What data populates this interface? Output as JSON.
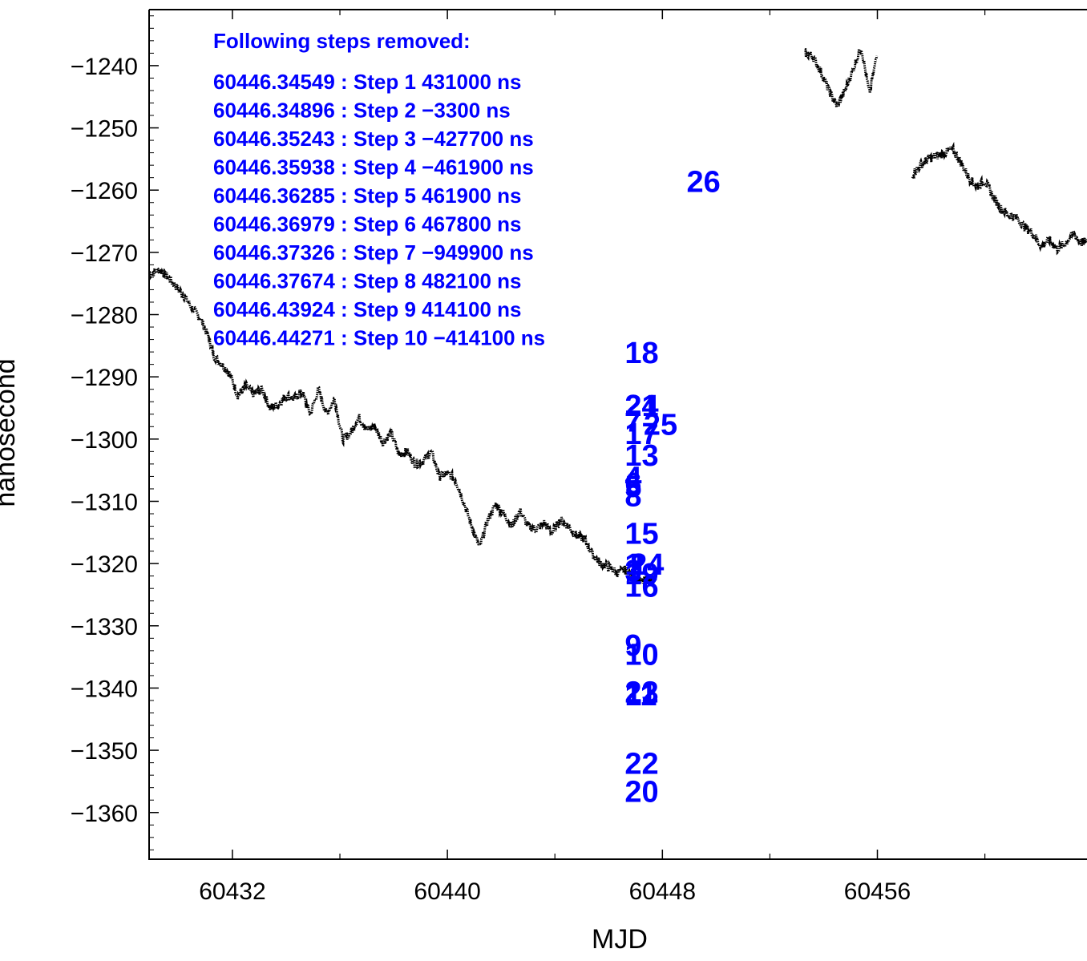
{
  "chart_data": {
    "type": "scatter",
    "title": "",
    "xlabel": "MJD",
    "ylabel": "nanosecond",
    "xlim": [
      60428.9,
      60463.8
    ],
    "ylim": [
      -1367.5,
      -1231.0
    ],
    "x_ticks": [
      60432,
      60440,
      60448,
      60456
    ],
    "x_minor_ticks": [
      60428,
      60436,
      60444,
      60452,
      60460
    ],
    "y_ticks": [
      -1240,
      -1250,
      -1260,
      -1270,
      -1280,
      -1290,
      -1300,
      -1310,
      -1320,
      -1330,
      -1340,
      -1350,
      -1360
    ],
    "grid": false,
    "marker_color": "#000000",
    "annotation_color": "#0000ff",
    "annotation": {
      "heading": "Following steps removed:",
      "lines": [
        "60446.34549 : Step 1 431000 ns",
        "60446.34896 : Step 2 −3300 ns",
        "60446.35243 : Step 3 −427700 ns",
        "60446.35938 : Step 4 −461900 ns",
        "60446.36285 : Step 5 461900 ns",
        "60446.36979 : Step 6 467800 ns",
        "60446.37326 : Step 7 −949900 ns",
        "60446.37674 : Step 8 482100 ns",
        "60446.43924 : Step 9 414100 ns",
        "60446.44271 : Step 10 −414100 ns"
      ]
    },
    "step_markers": [
      {
        "label": "18",
        "x": 60446.6,
        "y": -1286.0
      },
      {
        "label": "21",
        "x": 60446.6,
        "y": -1294.5
      },
      {
        "label": "24",
        "x": 60446.6,
        "y": -1294.5
      },
      {
        "label": "7",
        "x": 60446.6,
        "y": -1297.0
      },
      {
        "label": "25",
        "x": 60447.3,
        "y": -1297.5
      },
      {
        "label": "17",
        "x": 60446.6,
        "y": -1299.0
      },
      {
        "label": "13",
        "x": 60446.6,
        "y": -1302.5
      },
      {
        "label": "4",
        "x": 60446.6,
        "y": -1306.0
      },
      {
        "label": "6",
        "x": 60446.6,
        "y": -1307.0
      },
      {
        "label": "5",
        "x": 60446.6,
        "y": -1307.5
      },
      {
        "label": "8",
        "x": 60446.6,
        "y": -1309.0
      },
      {
        "label": "15",
        "x": 60446.6,
        "y": -1315.0
      },
      {
        "label": "1",
        "x": 60446.6,
        "y": -1320.0
      },
      {
        "label": "3",
        "x": 60446.6,
        "y": -1321.0
      },
      {
        "label": "19",
        "x": 60446.6,
        "y": -1321.5
      },
      {
        "label": "2",
        "x": 60446.8,
        "y": -1320.0
      },
      {
        "label": "14",
        "x": 60446.8,
        "y": -1320.0
      },
      {
        "label": "16",
        "x": 60446.6,
        "y": -1323.5
      },
      {
        "label": "9",
        "x": 60446.6,
        "y": -1333.0
      },
      {
        "label": "10",
        "x": 60446.6,
        "y": -1334.5
      },
      {
        "label": "12",
        "x": 60446.6,
        "y": -1340.5
      },
      {
        "label": "23",
        "x": 60446.6,
        "y": -1340.5
      },
      {
        "label": "11",
        "x": 60446.6,
        "y": -1341.0
      },
      {
        "label": "22",
        "x": 60446.6,
        "y": -1352.0
      },
      {
        "label": "20",
        "x": 60446.6,
        "y": -1356.5
      },
      {
        "label": "26",
        "x": 60448.9,
        "y": -1258.5
      }
    ],
    "series": [
      {
        "x": [
          60428.9,
          60429.3,
          60429.6,
          60429.9,
          60430.2,
          60430.5,
          60430.8,
          60431.1,
          60431.3,
          60431.6,
          60431.9,
          60432.2,
          60432.5,
          60432.8,
          60433.1,
          60433.4,
          60433.7,
          60434.0,
          60434.3,
          60434.6,
          60434.9,
          60435.2,
          60435.5,
          60435.8,
          60436.1,
          60436.4,
          60436.7,
          60437.0,
          60437.3,
          60437.6,
          60437.9,
          60438.2,
          60438.5,
          60438.8,
          60439.1,
          60439.4,
          60439.7,
          60440.0,
          60440.3,
          60440.6,
          60440.9,
          60441.2,
          60441.5,
          60441.8,
          60442.1,
          60442.4,
          60442.7,
          60443.0,
          60443.3,
          60443.6,
          60443.9,
          60444.2,
          60444.5,
          60444.8,
          60445.1,
          60445.4,
          60445.7,
          60446.0,
          60446.3,
          60446.6,
          60446.9,
          60447.2,
          60447.5,
          60447.7
        ],
        "y": [
          -1273.5,
          -1272.8,
          -1274.0,
          -1275.5,
          -1277.0,
          -1279.0,
          -1280.5,
          -1283.5,
          -1286.5,
          -1288.0,
          -1289.5,
          -1293.0,
          -1291.5,
          -1292.8,
          -1292.0,
          -1295.0,
          -1294.5,
          -1293.0,
          -1293.5,
          -1292.5,
          -1296.0,
          -1292.0,
          -1296.0,
          -1293.5,
          -1300.0,
          -1299.0,
          -1296.5,
          -1298.5,
          -1298.0,
          -1300.5,
          -1299.0,
          -1302.5,
          -1302.0,
          -1304.0,
          -1303.5,
          -1302.0,
          -1306.0,
          -1305.5,
          -1306.5,
          -1310.0,
          -1314.0,
          -1317.5,
          -1313.0,
          -1310.5,
          -1312.0,
          -1314.0,
          -1311.5,
          -1314.0,
          -1314.5,
          -1313.5,
          -1315.0,
          -1313.0,
          -1314.0,
          -1315.5,
          -1316.0,
          -1318.5,
          -1320.0,
          -1320.5,
          -1321.5,
          -1321.0,
          -1322.0,
          -1323.0,
          -1322.5,
          -1323.0
        ]
      },
      {
        "x": [
          60453.3,
          60453.6,
          60453.9,
          60454.2,
          60454.5,
          60454.8,
          60455.1,
          60455.4,
          60455.7,
          60456.0
        ],
        "y": [
          -1238.0,
          -1238.5,
          -1241.0,
          -1244.0,
          -1246.5,
          -1244.0,
          -1240.5,
          -1237.0,
          -1244.5,
          -1238.0
        ]
      },
      {
        "x": [
          60457.3,
          60457.6,
          60457.9,
          60458.2,
          60458.5,
          60458.8,
          60459.1,
          60459.4,
          60459.7,
          60460.0,
          60460.3,
          60460.6,
          60460.9,
          60461.2,
          60461.5,
          60461.8,
          60462.1,
          60462.4,
          60462.7,
          60463.0,
          60463.3,
          60463.6,
          60463.8
        ],
        "y": [
          -1257.5,
          -1256.0,
          -1255.0,
          -1254.5,
          -1254.0,
          -1253.5,
          -1255.5,
          -1258.0,
          -1259.5,
          -1258.5,
          -1261.0,
          -1263.0,
          -1264.0,
          -1264.5,
          -1266.0,
          -1267.0,
          -1269.0,
          -1268.0,
          -1269.5,
          -1268.5,
          -1267.0,
          -1268.5,
          -1268.0
        ]
      }
    ]
  }
}
